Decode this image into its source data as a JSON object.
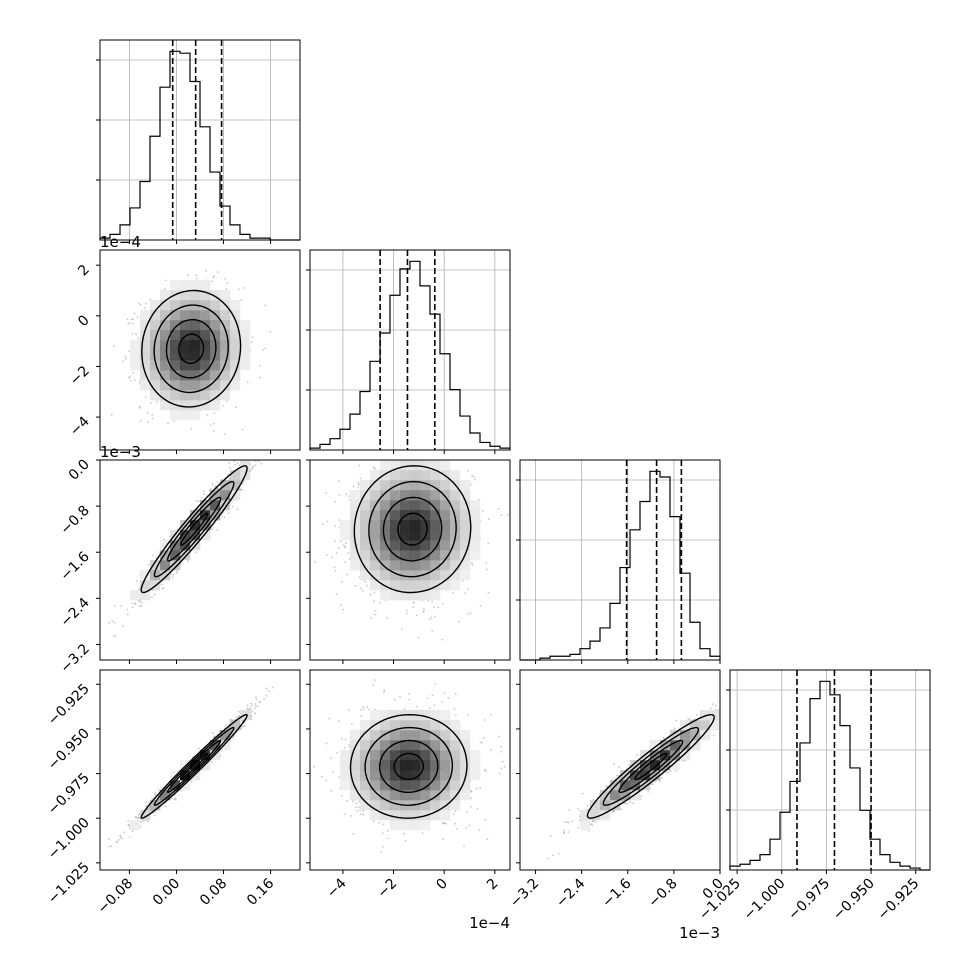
{
  "chart_data": {
    "type": "corner",
    "n_params": 4,
    "quantile_style": "dashed",
    "grid": true,
    "axes": [
      {
        "range": [
          -0.13,
          0.21
        ],
        "ticks": [
          -0.08,
          0.0,
          0.08,
          0.16
        ],
        "tick_labels": [
          "−0.08",
          "0.00",
          "0.08",
          "0.16"
        ],
        "offset": ""
      },
      {
        "range": [
          -5.3,
          2.6
        ],
        "ticks": [
          -4,
          -2,
          0,
          2
        ],
        "tick_labels": [
          "−4",
          "−2",
          "0",
          "2"
        ],
        "offset": "1e−4"
      },
      {
        "range": [
          -3.47,
          0.0
        ],
        "ticks": [
          -3.2,
          -2.4,
          -1.6,
          -0.8,
          0.0
        ],
        "tick_labels": [
          "−3.2",
          "−2.4",
          "−1.6",
          "−0.8",
          "0.0"
        ],
        "offset": "1e−3"
      },
      {
        "range": [
          -1.029,
          -0.917
        ],
        "ticks": [
          -1.025,
          -1.0,
          -0.975,
          -0.95,
          -0.925
        ],
        "tick_labels": [
          "−1.025",
          "−1.000",
          "−0.975",
          "−0.950",
          "−0.925"
        ],
        "offset": ""
      }
    ],
    "marginals": [
      {
        "edges": [
          -0.13,
          -0.113,
          -0.096,
          -0.079,
          -0.062,
          -0.045,
          -0.028,
          -0.011,
          0.006,
          0.023,
          0.04,
          0.057,
          0.074,
          0.091,
          0.108,
          0.125,
          0.142,
          0.159,
          0.176,
          0.193,
          0.21
        ],
        "counts": [
          1,
          3,
          8,
          17,
          31,
          55,
          81,
          100,
          99,
          84,
          60,
          36,
          18,
          8,
          3,
          1,
          1,
          0,
          0,
          0
        ],
        "quantiles": [
          -0.0064,
          0.0326,
          0.0767
        ]
      },
      {
        "edges": [
          -5.3,
          -4.905,
          -4.51,
          -4.115,
          -3.72,
          -3.325,
          -2.93,
          -2.535,
          -2.14,
          -1.745,
          -1.35,
          -0.955,
          -0.56,
          -0.165,
          0.23,
          0.625,
          1.02,
          1.415,
          1.81,
          2.205,
          2.6
        ],
        "counts": [
          1,
          3,
          6,
          11,
          19,
          31,
          47,
          62,
          82,
          96,
          100,
          87,
          72,
          51,
          32,
          18,
          9,
          4,
          2,
          1
        ],
        "quantiles": [
          -2.53,
          -1.45,
          -0.37
        ]
      },
      {
        "edges": [
          -3.47,
          -3.2965,
          -3.123,
          -2.9495,
          -2.776,
          -2.6025,
          -2.429,
          -2.2555,
          -2.082,
          -1.9085,
          -1.735,
          -1.5615,
          -1.388,
          -1.2145,
          -1.041,
          -0.8675,
          -0.694,
          -0.5205,
          -0.347,
          -0.1735,
          0.0
        ],
        "counts": [
          0,
          0,
          1,
          2,
          2,
          3,
          6,
          10,
          17,
          30,
          49,
          69,
          84,
          100,
          97,
          76,
          46,
          20,
          6,
          2
        ],
        "quantiles": [
          -1.62,
          -1.1,
          -0.67
        ]
      },
      {
        "edges": [
          -1.029,
          -1.0234,
          -1.0178,
          -1.0122,
          -1.0066,
          -1.001,
          -0.9954,
          -0.9898,
          -0.9842,
          -0.9786,
          -0.973,
          -0.9674,
          -0.9618,
          -0.9562,
          -0.9506,
          -0.945,
          -0.9394,
          -0.9338,
          -0.9282,
          -0.9226,
          -0.917
        ],
        "counts": [
          2,
          3,
          5,
          8,
          16,
          30,
          46,
          66,
          89,
          98,
          91,
          75,
          53,
          31,
          16,
          8,
          4,
          2,
          1,
          0
        ],
        "quantiles": [
          -0.9915,
          -0.9705,
          -0.95
        ]
      }
    ],
    "pairs": [
      {
        "row": 1,
        "col": 0,
        "mean": [
          0.025,
          -1.3
        ],
        "sd": [
          0.042,
          1.15
        ],
        "rho": 0.05,
        "npts": 1500
      },
      {
        "row": 2,
        "col": 0,
        "mean": [
          0.03,
          -1.2
        ],
        "sd": [
          0.045,
          0.55
        ],
        "rho": 0.96,
        "npts": 1500
      },
      {
        "row": 2,
        "col": 1,
        "mean": [
          -1.25,
          -1.2
        ],
        "sd": [
          1.15,
          0.55
        ],
        "rho": 0.03,
        "npts": 1500
      },
      {
        "row": 3,
        "col": 0,
        "mean": [
          0.03,
          -0.971
        ],
        "sd": [
          0.045,
          0.0145
        ],
        "rho": 0.985,
        "npts": 1500
      },
      {
        "row": 3,
        "col": 1,
        "mean": [
          -1.4,
          -0.971
        ],
        "sd": [
          1.15,
          0.0145
        ],
        "rho": 0.02,
        "npts": 1500
      },
      {
        "row": 3,
        "col": 2,
        "mean": [
          -1.2,
          -0.971
        ],
        "sd": [
          0.55,
          0.0145
        ],
        "rho": 0.95,
        "npts": 1500
      }
    ],
    "contour_levels": [
      0.5,
      1.0,
      1.5,
      2.0
    ]
  }
}
